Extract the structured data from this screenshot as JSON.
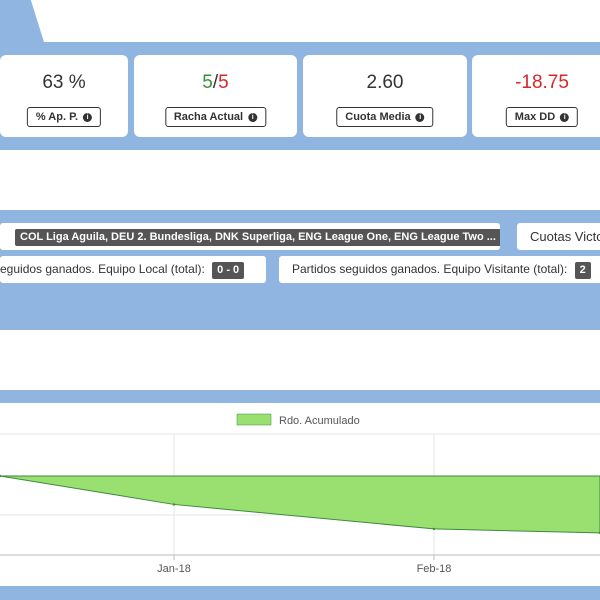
{
  "stats": [
    {
      "value": "63 %",
      "label": "% Ap. P."
    },
    {
      "value_a": "5",
      "sep": "/",
      "value_b": "5",
      "label": "Racha Actual"
    },
    {
      "value": "2.60",
      "label": "Cuota Media"
    },
    {
      "value": "-18.75",
      "label": "Max DD"
    }
  ],
  "info_glyph": "i",
  "filters": {
    "leagues_tag": "COL Liga Aguila, DEU 2. Bundesliga, DNK Superliga, ENG League One, ENG League Two ...",
    "odds_label": "Cuotas Victo",
    "home_label": "eguidos ganados. Equipo Local (total):",
    "home_value": "0 - 0",
    "away_label": "Partidos seguidos ganados. Equipo Visitante (total):",
    "away_value": "2"
  },
  "colors": {
    "band": "#8fb5e0",
    "area_fill": "#99e070",
    "area_stroke": "#3d8a3d"
  },
  "chart_data": {
    "type": "area",
    "legend": "Rdo. Acumulado",
    "legend_position": "top",
    "x_ticks": [
      "Jan-18",
      "Feb-18"
    ],
    "grid": true,
    "series": [
      {
        "name": "Rdo. Acumulado",
        "points": [
          [
            0,
            0
          ],
          [
            1,
            -36
          ],
          [
            2,
            -67
          ],
          [
            3,
            -72
          ]
        ]
      }
    ]
  }
}
